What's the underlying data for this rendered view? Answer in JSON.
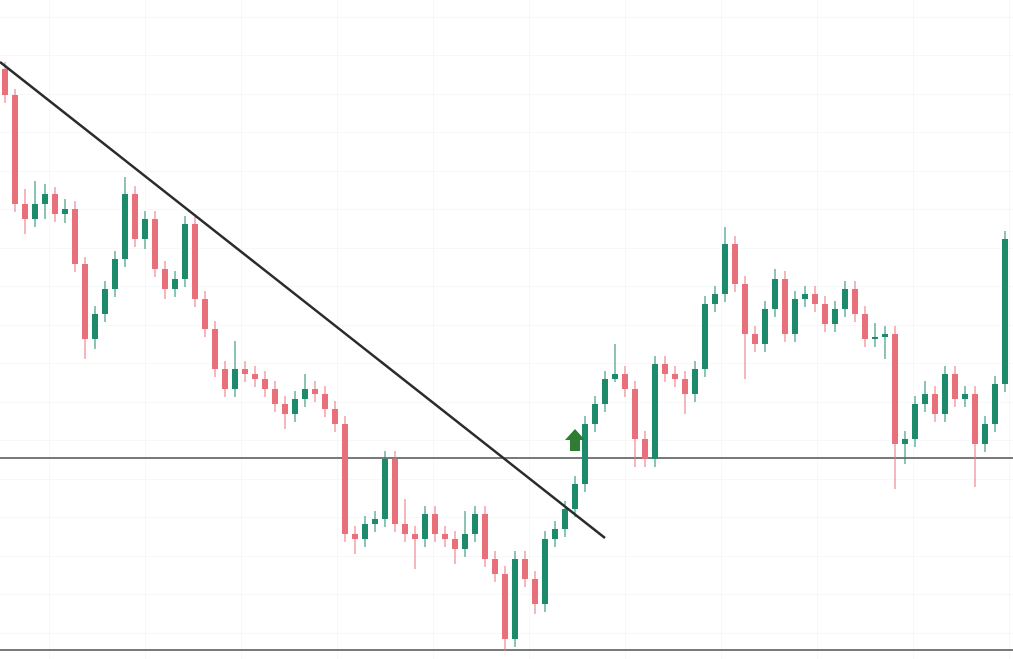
{
  "chart_data": {
    "type": "candlestick",
    "ylim": [
      0,
      659
    ],
    "up_color": "#1e8a6c",
    "down_color": "#e8707a",
    "candles": [
      [
        590,
        597,
        556,
        564
      ],
      [
        564,
        570,
        447,
        455
      ],
      [
        455,
        470,
        425,
        440
      ],
      [
        440,
        478,
        432,
        455
      ],
      [
        455,
        475,
        440,
        465
      ],
      [
        465,
        472,
        437,
        445
      ],
      [
        445,
        460,
        436,
        450
      ],
      [
        450,
        458,
        387,
        395
      ],
      [
        395,
        402,
        300,
        320
      ],
      [
        320,
        353,
        310,
        345
      ],
      [
        345,
        378,
        337,
        370
      ],
      [
        370,
        408,
        362,
        400
      ],
      [
        400,
        482,
        392,
        465
      ],
      [
        465,
        473,
        412,
        420
      ],
      [
        420,
        448,
        410,
        440
      ],
      [
        440,
        448,
        382,
        390
      ],
      [
        390,
        398,
        360,
        370
      ],
      [
        370,
        388,
        362,
        380
      ],
      [
        380,
        443,
        372,
        435
      ],
      [
        435,
        443,
        352,
        360
      ],
      [
        360,
        368,
        322,
        330
      ],
      [
        330,
        338,
        282,
        290
      ],
      [
        290,
        298,
        262,
        270
      ],
      [
        270,
        318,
        262,
        290
      ],
      [
        290,
        298,
        277,
        285
      ],
      [
        285,
        293,
        272,
        280
      ],
      [
        280,
        288,
        262,
        270
      ],
      [
        270,
        278,
        247,
        255
      ],
      [
        255,
        263,
        230,
        245
      ],
      [
        245,
        268,
        237,
        260
      ],
      [
        260,
        285,
        252,
        270
      ],
      [
        270,
        278,
        257,
        265
      ],
      [
        265,
        273,
        242,
        250
      ],
      [
        250,
        258,
        227,
        235
      ],
      [
        235,
        243,
        117,
        125
      ],
      [
        125,
        133,
        105,
        120
      ],
      [
        120,
        143,
        112,
        135
      ],
      [
        135,
        148,
        127,
        140
      ],
      [
        140,
        208,
        132,
        200
      ],
      [
        200,
        208,
        127,
        135
      ],
      [
        135,
        160,
        117,
        125
      ],
      [
        125,
        133,
        90,
        120
      ],
      [
        120,
        153,
        112,
        145
      ],
      [
        145,
        153,
        117,
        125
      ],
      [
        125,
        133,
        112,
        120
      ],
      [
        120,
        128,
        95,
        110
      ],
      [
        110,
        148,
        102,
        125
      ],
      [
        125,
        153,
        117,
        145
      ],
      [
        145,
        153,
        92,
        100
      ],
      [
        100,
        108,
        77,
        85
      ],
      [
        85,
        93,
        8,
        20
      ],
      [
        20,
        108,
        12,
        100
      ],
      [
        100,
        108,
        72,
        80
      ],
      [
        80,
        88,
        45,
        55
      ],
      [
        55,
        128,
        47,
        120
      ],
      [
        120,
        138,
        112,
        130
      ],
      [
        130,
        158,
        122,
        150
      ],
      [
        150,
        183,
        142,
        175
      ],
      [
        175,
        243,
        167,
        235
      ],
      [
        235,
        263,
        227,
        255
      ],
      [
        255,
        288,
        247,
        280
      ],
      [
        280,
        315,
        277,
        285
      ],
      [
        285,
        293,
        262,
        270
      ],
      [
        270,
        278,
        192,
        220
      ],
      [
        220,
        228,
        192,
        200
      ],
      [
        200,
        303,
        192,
        295
      ],
      [
        295,
        303,
        277,
        285
      ],
      [
        285,
        293,
        272,
        280
      ],
      [
        280,
        288,
        245,
        265
      ],
      [
        265,
        298,
        257,
        290
      ],
      [
        290,
        363,
        282,
        355
      ],
      [
        355,
        373,
        347,
        365
      ],
      [
        365,
        432,
        357,
        415
      ],
      [
        415,
        423,
        367,
        375
      ],
      [
        375,
        383,
        280,
        325
      ],
      [
        325,
        333,
        307,
        315
      ],
      [
        315,
        358,
        307,
        350
      ],
      [
        350,
        390,
        342,
        380
      ],
      [
        380,
        388,
        317,
        325
      ],
      [
        325,
        368,
        317,
        360
      ],
      [
        360,
        373,
        352,
        365
      ],
      [
        365,
        373,
        347,
        355
      ],
      [
        355,
        363,
        327,
        335
      ],
      [
        335,
        358,
        327,
        350
      ],
      [
        350,
        378,
        342,
        370
      ],
      [
        370,
        378,
        337,
        345
      ],
      [
        345,
        353,
        312,
        320
      ],
      [
        320,
        336,
        312,
        322
      ],
      [
        322,
        333,
        300,
        325
      ],
      [
        325,
        333,
        170,
        215
      ],
      [
        215,
        228,
        195,
        220
      ],
      [
        220,
        263,
        212,
        255
      ],
      [
        255,
        278,
        247,
        265
      ],
      [
        265,
        273,
        237,
        245
      ],
      [
        245,
        293,
        237,
        285
      ],
      [
        285,
        293,
        252,
        260
      ],
      [
        260,
        273,
        252,
        265
      ],
      [
        265,
        273,
        172,
        215
      ],
      [
        215,
        243,
        207,
        235
      ],
      [
        235,
        283,
        227,
        275
      ],
      [
        275,
        428,
        267,
        420
      ]
    ],
    "trendline": {
      "start": [
        -0.5,
        597
      ],
      "end": [
        60,
        121
      ],
      "color": "#2b2b2b"
    },
    "levels": [
      201,
      9
    ],
    "level_color": "#7a7a7a",
    "arrow": {
      "index": 57,
      "price": 219,
      "color": "#2e7d32"
    }
  }
}
